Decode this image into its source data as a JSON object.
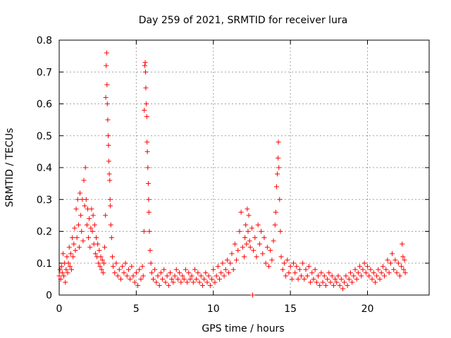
{
  "chart_data": {
    "type": "scatter",
    "title": "Day 259 of 2021, SRMTID for receiver lura",
    "xlabel": "GPS time / hours",
    "ylabel": "SRMTID / TECUs",
    "xlim": [
      0,
      24
    ],
    "ylim": [
      0,
      0.8
    ],
    "x_ticks": [
      0,
      5,
      10,
      15,
      20
    ],
    "x_tick_labels": [
      "0",
      "5",
      "10",
      "15",
      "20"
    ],
    "y_ticks": [
      0,
      0.1,
      0.2,
      0.3,
      0.4,
      0.5,
      0.6,
      0.7,
      0.8
    ],
    "y_tick_labels": [
      "0",
      "0.1",
      "0.2",
      "0.3",
      "0.4",
      "0.5",
      "0.6",
      "0.7",
      "0.8"
    ],
    "grid": true,
    "marker": "+",
    "series": [
      {
        "name": "SRMTID",
        "color": "#ff0000",
        "points": [
          [
            0.0,
            0.06
          ],
          [
            0.05,
            0.08
          ],
          [
            0.1,
            0.05
          ],
          [
            0.15,
            0.09
          ],
          [
            0.2,
            0.07
          ],
          [
            0.25,
            0.13
          ],
          [
            0.3,
            0.06
          ],
          [
            0.35,
            0.1
          ],
          [
            0.4,
            0.04
          ],
          [
            0.45,
            0.08
          ],
          [
            0.5,
            0.12
          ],
          [
            0.55,
            0.07
          ],
          [
            0.6,
            0.1
          ],
          [
            0.65,
            0.15
          ],
          [
            0.7,
            0.09
          ],
          [
            0.75,
            0.13
          ],
          [
            0.8,
            0.08
          ],
          [
            0.85,
            0.18
          ],
          [
            0.9,
            0.12
          ],
          [
            0.95,
            0.16
          ],
          [
            1.0,
            0.21
          ],
          [
            1.05,
            0.14
          ],
          [
            1.1,
            0.27
          ],
          [
            1.15,
            0.18
          ],
          [
            1.2,
            0.3
          ],
          [
            1.25,
            0.22
          ],
          [
            1.3,
            0.15
          ],
          [
            1.35,
            0.32
          ],
          [
            1.4,
            0.25
          ],
          [
            1.45,
            0.2
          ],
          [
            1.5,
            0.3
          ],
          [
            1.55,
            0.17
          ],
          [
            1.6,
            0.36
          ],
          [
            1.65,
            0.28
          ],
          [
            1.7,
            0.4
          ],
          [
            1.75,
            0.3
          ],
          [
            1.8,
            0.22
          ],
          [
            1.85,
            0.27
          ],
          [
            1.9,
            0.18
          ],
          [
            1.95,
            0.24
          ],
          [
            2.0,
            0.15
          ],
          [
            2.05,
            0.21
          ],
          [
            2.1,
            0.27
          ],
          [
            2.15,
            0.2
          ],
          [
            2.2,
            0.25
          ],
          [
            2.25,
            0.16
          ],
          [
            2.3,
            0.22
          ],
          [
            2.35,
            0.13
          ],
          [
            2.4,
            0.18
          ],
          [
            2.45,
            0.12
          ],
          [
            2.5,
            0.16
          ],
          [
            2.55,
            0.1
          ],
          [
            2.6,
            0.14
          ],
          [
            2.65,
            0.09
          ],
          [
            2.7,
            0.12
          ],
          [
            2.75,
            0.08
          ],
          [
            2.8,
            0.11
          ],
          [
            2.85,
            0.07
          ],
          [
            2.9,
            0.1
          ],
          [
            2.95,
            0.15
          ],
          [
            3.0,
            0.25
          ],
          [
            3.02,
            0.62
          ],
          [
            3.05,
            0.72
          ],
          [
            3.08,
            0.76
          ],
          [
            3.1,
            0.66
          ],
          [
            3.12,
            0.6
          ],
          [
            3.15,
            0.55
          ],
          [
            3.18,
            0.5
          ],
          [
            3.2,
            0.47
          ],
          [
            3.22,
            0.42
          ],
          [
            3.25,
            0.38
          ],
          [
            3.28,
            0.36
          ],
          [
            3.3,
            0.3
          ],
          [
            3.32,
            0.28
          ],
          [
            3.35,
            0.22
          ],
          [
            3.4,
            0.18
          ],
          [
            3.45,
            0.12
          ],
          [
            3.5,
            0.09
          ],
          [
            3.6,
            0.07
          ],
          [
            3.7,
            0.1
          ],
          [
            3.8,
            0.06
          ],
          [
            3.9,
            0.08
          ],
          [
            4.0,
            0.05
          ],
          [
            4.1,
            0.09
          ],
          [
            4.2,
            0.07
          ],
          [
            4.3,
            0.1
          ],
          [
            4.4,
            0.06
          ],
          [
            4.5,
            0.08
          ],
          [
            4.6,
            0.05
          ],
          [
            4.7,
            0.09
          ],
          [
            4.8,
            0.06
          ],
          [
            4.9,
            0.04
          ],
          [
            5.0,
            0.07
          ],
          [
            5.1,
            0.03
          ],
          [
            5.2,
            0.08
          ],
          [
            5.3,
            0.05
          ],
          [
            5.4,
            0.09
          ],
          [
            5.45,
            0.06
          ],
          [
            5.5,
            0.2
          ],
          [
            5.52,
            0.58
          ],
          [
            5.55,
            0.72
          ],
          [
            5.58,
            0.73
          ],
          [
            5.6,
            0.7
          ],
          [
            5.62,
            0.65
          ],
          [
            5.65,
            0.6
          ],
          [
            5.68,
            0.56
          ],
          [
            5.7,
            0.48
          ],
          [
            5.72,
            0.45
          ],
          [
            5.75,
            0.4
          ],
          [
            5.78,
            0.35
          ],
          [
            5.8,
            0.3
          ],
          [
            5.82,
            0.26
          ],
          [
            5.85,
            0.2
          ],
          [
            5.9,
            0.14
          ],
          [
            5.95,
            0.1
          ],
          [
            6.0,
            0.07
          ],
          [
            6.1,
            0.05
          ],
          [
            6.2,
            0.08
          ],
          [
            6.3,
            0.04
          ],
          [
            6.4,
            0.06
          ],
          [
            6.5,
            0.03
          ],
          [
            6.6,
            0.07
          ],
          [
            6.7,
            0.05
          ],
          [
            6.8,
            0.08
          ],
          [
            6.9,
            0.04
          ],
          [
            7.0,
            0.06
          ],
          [
            7.1,
            0.03
          ],
          [
            7.2,
            0.07
          ],
          [
            7.3,
            0.05
          ],
          [
            7.4,
            0.04
          ],
          [
            7.5,
            0.06
          ],
          [
            7.6,
            0.08
          ],
          [
            7.7,
            0.05
          ],
          [
            7.8,
            0.07
          ],
          [
            7.9,
            0.04
          ],
          [
            8.0,
            0.06
          ],
          [
            8.1,
            0.05
          ],
          [
            8.2,
            0.08
          ],
          [
            8.3,
            0.04
          ],
          [
            8.4,
            0.07
          ],
          [
            8.5,
            0.05
          ],
          [
            8.6,
            0.06
          ],
          [
            8.7,
            0.04
          ],
          [
            8.8,
            0.08
          ],
          [
            8.9,
            0.05
          ],
          [
            9.0,
            0.07
          ],
          [
            9.1,
            0.04
          ],
          [
            9.2,
            0.06
          ],
          [
            9.3,
            0.03
          ],
          [
            9.4,
            0.05
          ],
          [
            9.5,
            0.07
          ],
          [
            9.6,
            0.04
          ],
          [
            9.7,
            0.06
          ],
          [
            9.8,
            0.03
          ],
          [
            9.9,
            0.05
          ],
          [
            10.0,
            0.08
          ],
          [
            10.1,
            0.04
          ],
          [
            10.2,
            0.06
          ],
          [
            10.3,
            0.09
          ],
          [
            10.4,
            0.05
          ],
          [
            10.5,
            0.07
          ],
          [
            10.6,
            0.1
          ],
          [
            10.7,
            0.06
          ],
          [
            10.8,
            0.08
          ],
          [
            10.9,
            0.11
          ],
          [
            11.0,
            0.07
          ],
          [
            11.1,
            0.1
          ],
          [
            11.2,
            0.13
          ],
          [
            11.3,
            0.08
          ],
          [
            11.4,
            0.16
          ],
          [
            11.5,
            0.11
          ],
          [
            11.6,
            0.14
          ],
          [
            11.7,
            0.2
          ],
          [
            11.8,
            0.26
          ],
          [
            11.9,
            0.15
          ],
          [
            12.0,
            0.12
          ],
          [
            12.05,
            0.18
          ],
          [
            12.1,
            0.22
          ],
          [
            12.15,
            0.16
          ],
          [
            12.2,
            0.27
          ],
          [
            12.25,
            0.2
          ],
          [
            12.3,
            0.25
          ],
          [
            12.35,
            0.17
          ],
          [
            12.4,
            0.15
          ],
          [
            12.5,
            0.21
          ],
          [
            12.55,
            0
          ],
          [
            12.6,
            0.14
          ],
          [
            12.7,
            0.18
          ],
          [
            12.8,
            0.12
          ],
          [
            12.9,
            0.22
          ],
          [
            13.0,
            0.16
          ],
          [
            13.1,
            0.2
          ],
          [
            13.2,
            0.13
          ],
          [
            13.3,
            0.18
          ],
          [
            13.4,
            0.1
          ],
          [
            13.5,
            0.15
          ],
          [
            13.6,
            0.09
          ],
          [
            13.7,
            0.14
          ],
          [
            13.8,
            0.11
          ],
          [
            13.9,
            0.17
          ],
          [
            14.0,
            0.22
          ],
          [
            14.05,
            0.26
          ],
          [
            14.1,
            0.34
          ],
          [
            14.15,
            0.38
          ],
          [
            14.2,
            0.43
          ],
          [
            14.22,
            0.48
          ],
          [
            14.25,
            0.4
          ],
          [
            14.3,
            0.3
          ],
          [
            14.35,
            0.2
          ],
          [
            14.4,
            0.12
          ],
          [
            14.5,
            0.08
          ],
          [
            14.6,
            0.1
          ],
          [
            14.7,
            0.06
          ],
          [
            14.8,
            0.11
          ],
          [
            14.9,
            0.07
          ],
          [
            15.0,
            0.09
          ],
          [
            15.1,
            0.05
          ],
          [
            15.2,
            0.1
          ],
          [
            15.3,
            0.07
          ],
          [
            15.4,
            0.09
          ],
          [
            15.5,
            0.05
          ],
          [
            15.6,
            0.08
          ],
          [
            15.7,
            0.06
          ],
          [
            15.8,
            0.1
          ],
          [
            15.9,
            0.05
          ],
          [
            16.0,
            0.08
          ],
          [
            16.1,
            0.06
          ],
          [
            16.2,
            0.09
          ],
          [
            16.3,
            0.04
          ],
          [
            16.4,
            0.07
          ],
          [
            16.5,
            0.05
          ],
          [
            16.6,
            0.08
          ],
          [
            16.7,
            0.04
          ],
          [
            16.8,
            0.06
          ],
          [
            16.9,
            0.03
          ],
          [
            17.0,
            0.07
          ],
          [
            17.1,
            0.04
          ],
          [
            17.2,
            0.06
          ],
          [
            17.3,
            0.03
          ],
          [
            17.4,
            0.05
          ],
          [
            17.5,
            0.07
          ],
          [
            17.6,
            0.04
          ],
          [
            17.7,
            0.06
          ],
          [
            17.8,
            0.03
          ],
          [
            17.9,
            0.05
          ],
          [
            18.0,
            0.04
          ],
          [
            18.1,
            0.06
          ],
          [
            18.2,
            0.03
          ],
          [
            18.3,
            0.05
          ],
          [
            18.4,
            0.02
          ],
          [
            18.5,
            0.04
          ],
          [
            18.6,
            0.06
          ],
          [
            18.7,
            0.03
          ],
          [
            18.8,
            0.05
          ],
          [
            18.9,
            0.07
          ],
          [
            19.0,
            0.04
          ],
          [
            19.1,
            0.06
          ],
          [
            19.2,
            0.08
          ],
          [
            19.3,
            0.05
          ],
          [
            19.4,
            0.07
          ],
          [
            19.5,
            0.09
          ],
          [
            19.6,
            0.06
          ],
          [
            19.7,
            0.08
          ],
          [
            19.8,
            0.1
          ],
          [
            19.9,
            0.07
          ],
          [
            20.0,
            0.09
          ],
          [
            20.1,
            0.06
          ],
          [
            20.2,
            0.08
          ],
          [
            20.3,
            0.05
          ],
          [
            20.4,
            0.07
          ],
          [
            20.5,
            0.04
          ],
          [
            20.6,
            0.06
          ],
          [
            20.7,
            0.08
          ],
          [
            20.8,
            0.05
          ],
          [
            20.9,
            0.07
          ],
          [
            21.0,
            0.09
          ],
          [
            21.1,
            0.06
          ],
          [
            21.2,
            0.08
          ],
          [
            21.3,
            0.11
          ],
          [
            21.4,
            0.07
          ],
          [
            21.5,
            0.1
          ],
          [
            21.6,
            0.13
          ],
          [
            21.7,
            0.08
          ],
          [
            21.8,
            0.11
          ],
          [
            21.9,
            0.07
          ],
          [
            22.0,
            0.1
          ],
          [
            22.1,
            0.06
          ],
          [
            22.2,
            0.09
          ],
          [
            22.25,
            0.16
          ],
          [
            22.3,
            0.12
          ],
          [
            22.35,
            0.08
          ],
          [
            22.4,
            0.11
          ],
          [
            22.45,
            0.07
          ]
        ]
      }
    ]
  }
}
